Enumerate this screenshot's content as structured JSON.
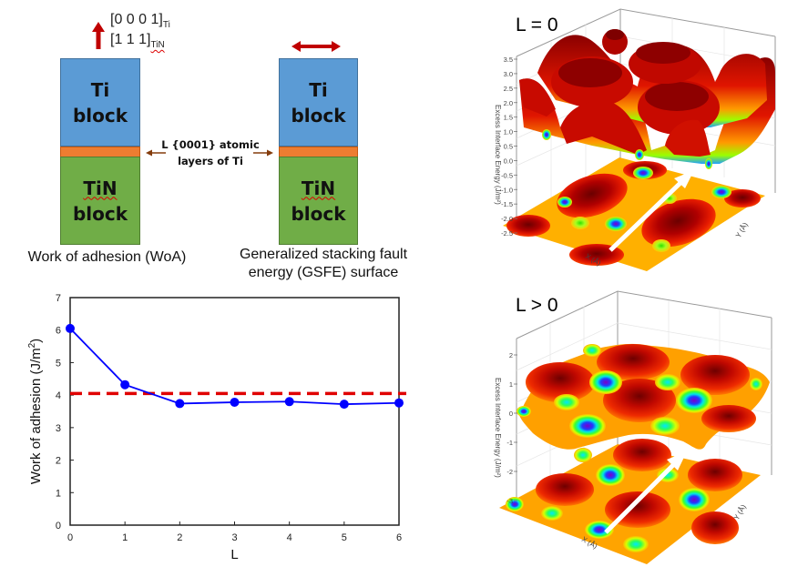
{
  "schematic": {
    "direction_labels": [
      {
        "text": "[0 0 0 1]",
        "sub": "Ti"
      },
      {
        "text": "[1 1 1]",
        "sub": "TiN"
      }
    ],
    "left_stack": {
      "top_block": [
        "Ti",
        "block"
      ],
      "bottom_block": [
        "TiN",
        "block"
      ],
      "caption": "Work of adhesion (WoA)"
    },
    "right_stack": {
      "top_block": [
        "Ti",
        "block"
      ],
      "bottom_block": [
        "TiN",
        "block"
      ],
      "caption_lines": [
        "Generalized stacking fault",
        "energy (GSFE) surface"
      ]
    },
    "interlayer_label": [
      "L {0001} atomic",
      "layers of Ti"
    ],
    "colors": {
      "ti_block": "#5b9bd5",
      "interlayer": "#ed7d31",
      "tin_block": "#70ad47",
      "arrow": "#c00000",
      "layer_arrow": "#843c0c"
    }
  },
  "surface_plots": [
    {
      "label": "L = 0",
      "z_axis_title": "Excess Interface Energy (J/m²)",
      "z_ticks": [
        "3.5",
        "3.0",
        "2.5",
        "2.0",
        "1.5",
        "1.0",
        "0.5",
        "0.0",
        "-0.5",
        "-1.0",
        "-1.5",
        "-2.0",
        "-2.5"
      ],
      "x_axis_title": "X (Å)",
      "y_axis_title": "Y (Å)",
      "x_ticks": [
        "1",
        "2",
        "3",
        "4"
      ],
      "y_ticks": [
        "1",
        "2",
        "3",
        "4"
      ]
    },
    {
      "label": "L > 0",
      "z_axis_title": "Excess Interface Energy (J/m²)",
      "z_ticks": [
        "2",
        "1",
        "0",
        "-1",
        "-2",
        "-3"
      ],
      "x_axis_title": "X (Å)",
      "y_axis_title": "Y (Å)",
      "x_ticks": [
        "0",
        "1",
        "2",
        "3",
        "4",
        "5"
      ],
      "y_ticks": [
        "0",
        "1",
        "2",
        "3",
        "4"
      ]
    }
  ],
  "chart_data": {
    "type": "line",
    "title": "",
    "xlabel": "L",
    "ylabel": "Work of adhesion (J/m²)",
    "x": [
      0,
      1,
      2,
      3,
      4,
      5,
      6
    ],
    "series": [
      {
        "name": "WoA",
        "values": [
          6.05,
          4.32,
          3.74,
          3.78,
          3.8,
          3.72,
          3.76
        ],
        "color": "#0000ff",
        "marker": "circle"
      }
    ],
    "reference_lines": [
      {
        "y": 4.05,
        "style": "dashed",
        "color": "#e00000"
      }
    ],
    "xlim": [
      0,
      6
    ],
    "ylim": [
      0,
      7
    ],
    "x_ticks": [
      "0",
      "1",
      "2",
      "3",
      "4",
      "5",
      "6"
    ],
    "y_ticks": [
      "0",
      "1",
      "2",
      "3",
      "4",
      "5",
      "6",
      "7"
    ],
    "grid": false,
    "legend": "none"
  }
}
